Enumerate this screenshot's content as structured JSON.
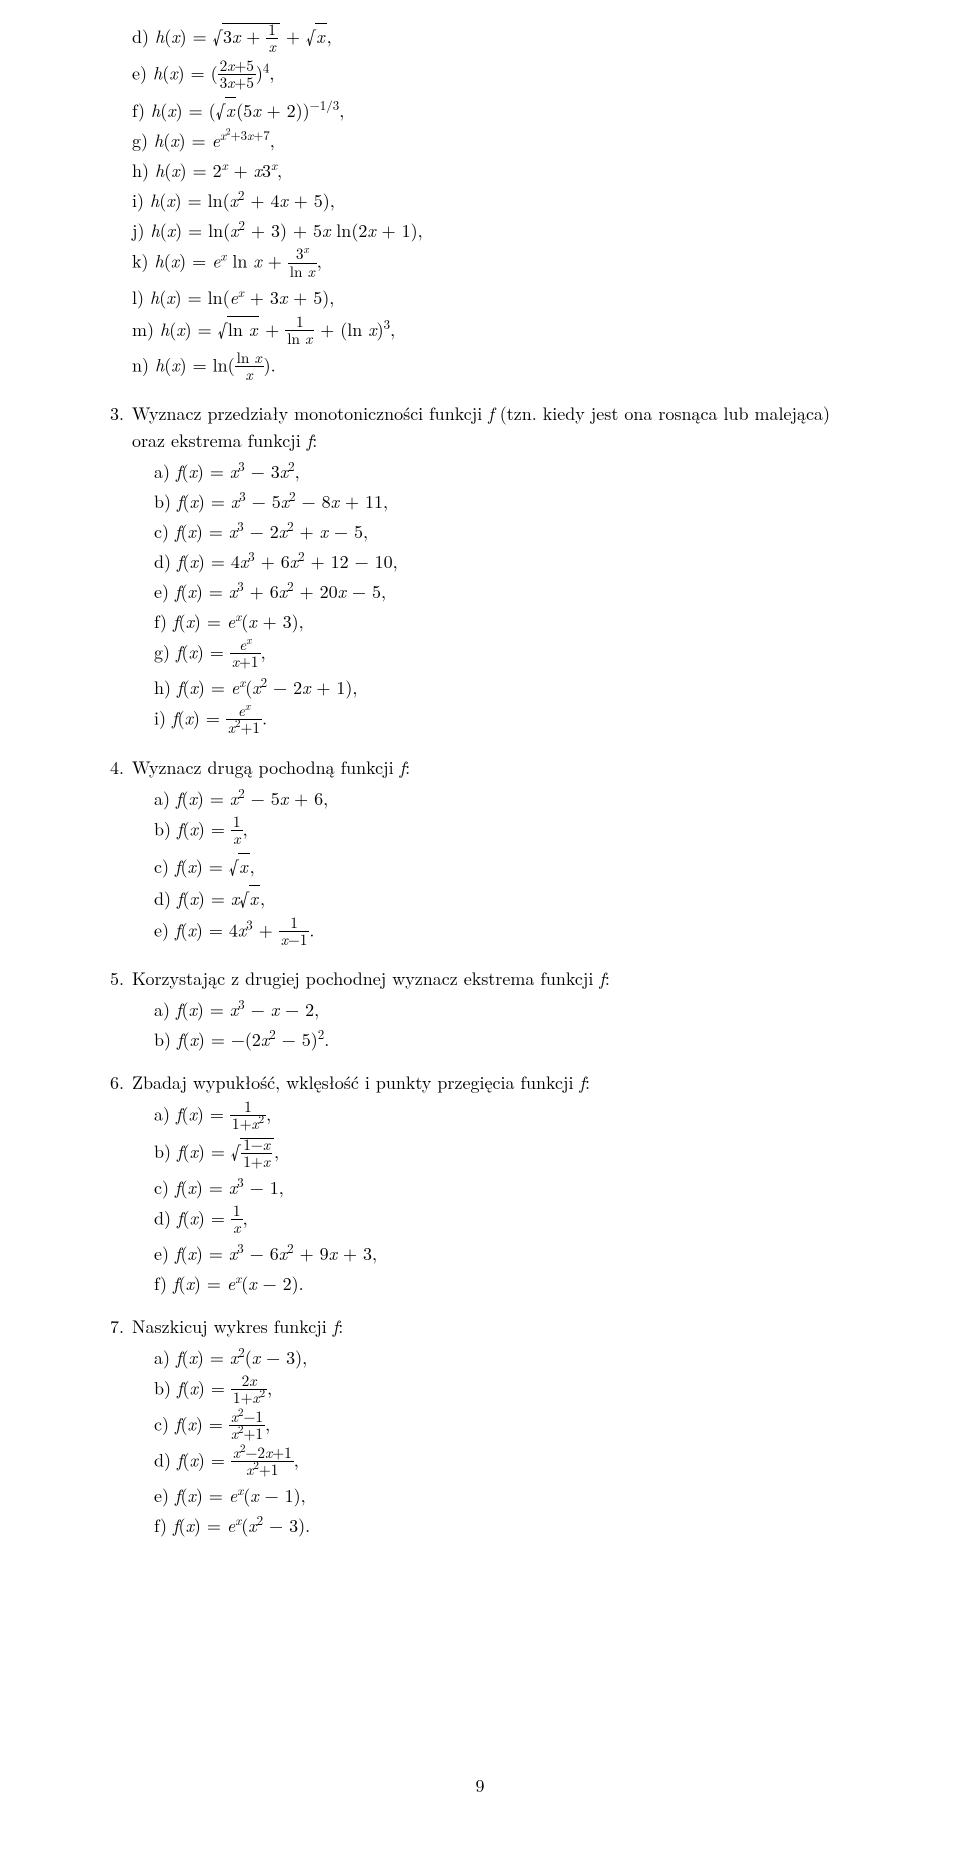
{
  "page_number": "9",
  "colors": {
    "text": "#000000",
    "background": "#ffffff"
  },
  "font": {
    "family": "Latin Modern Roman / Computer Modern",
    "base_size_pt": 12
  },
  "cont2": {
    "items": [
      {
        "label": "d)",
        "expr": "h(x) = √(3x + 1/x) + √x,"
      },
      {
        "label": "e)",
        "expr": "h(x) = ((2x+5)/(3x+5))⁴,"
      },
      {
        "label": "f)",
        "expr": "h(x) = (√x(5x + 2))^(−1/3),"
      },
      {
        "label": "g)",
        "expr": "h(x) = e^(x²+3x+7),"
      },
      {
        "label": "h)",
        "expr": "h(x) = 2^x + x3^x,"
      },
      {
        "label": "i)",
        "expr": "h(x) = ln(x² + 4x + 5),"
      },
      {
        "label": "j)",
        "expr": "h(x) = ln(x² + 3) + 5x ln(2x + 1),"
      },
      {
        "label": "k)",
        "expr": "h(x) = e^x ln x + 3^x/ln x,"
      },
      {
        "label": "l)",
        "expr": "h(x) = ln(e^x + 3x + 5),"
      },
      {
        "label": "m)",
        "expr": "h(x) = √(ln x) + 1/ln x + (ln x)³,"
      },
      {
        "label": "n)",
        "expr": "h(x) = ln( ln x / x )."
      }
    ]
  },
  "ex3": {
    "marker": "3.",
    "text_a": "Wyznacz przedziały monotoniczności funkcji ",
    "text_b": " (tzn. kiedy jest ona rosnąca lub malejąca) oraz ekstrema funkcji ",
    "text_c": ":",
    "items": [
      {
        "label": "a)",
        "expr": "f(x) = x³ − 3x²,"
      },
      {
        "label": "b)",
        "expr": "f(x) = x³ − 5x² − 8x + 11,"
      },
      {
        "label": "c)",
        "expr": "f(x) = x³ − 2x² + x − 5,"
      },
      {
        "label": "d)",
        "expr": "f(x) = 4x³ + 6x² + 12 − 10,"
      },
      {
        "label": "e)",
        "expr": "f(x) = x³ + 6x² + 20x − 5,"
      },
      {
        "label": "f)",
        "expr": "f(x) = e^x(x + 3),"
      },
      {
        "label": "g)",
        "expr": "f(x) = e^x/(x+1),"
      },
      {
        "label": "h)",
        "expr": "f(x) = e^x(x² − 2x + 1),"
      },
      {
        "label": "i)",
        "expr": "f(x) = e^x/(x²+1)."
      }
    ]
  },
  "ex4": {
    "marker": "4.",
    "text": "Wyznacz drugą pochodną funkcji ",
    "items": [
      {
        "label": "a)",
        "expr": "f(x) = x² − 5x + 6,"
      },
      {
        "label": "b)",
        "expr": "f(x) = 1/x,"
      },
      {
        "label": "c)",
        "expr": "f(x) = √x,"
      },
      {
        "label": "d)",
        "expr": "f(x) = x√x,"
      },
      {
        "label": "e)",
        "expr": "f(x) = 4x³ + 1/(x−1)."
      }
    ]
  },
  "ex5": {
    "marker": "5.",
    "text": "Korzystając z drugiej pochodnej wyznacz ekstrema funkcji ",
    "items": [
      {
        "label": "a)",
        "expr": "f(x) = x³ − x − 2,"
      },
      {
        "label": "b)",
        "expr": "f(x) = −(2x² − 5)²."
      }
    ]
  },
  "ex6": {
    "marker": "6.",
    "text": "Zbadaj wypukłość, wklęsłość i punkty przegięcia funkcji ",
    "items": [
      {
        "label": "a)",
        "expr": "f(x) = 1/(1+x²),"
      },
      {
        "label": "b)",
        "expr": "f(x) = √((1−x)/(1+x)),"
      },
      {
        "label": "c)",
        "expr": "f(x) = x³ − 1,"
      },
      {
        "label": "d)",
        "expr": "f(x) = 1/x,"
      },
      {
        "label": "e)",
        "expr": "f(x) = x³ − 6x² + 9x + 3,"
      },
      {
        "label": "f)",
        "expr": "f(x) = e^x(x − 2)."
      }
    ]
  },
  "ex7": {
    "marker": "7.",
    "text": "Naszkicuj wykres funkcji ",
    "items": [
      {
        "label": "a)",
        "expr": "f(x) = x²(x − 3),"
      },
      {
        "label": "b)",
        "expr": "f(x) = 2x/(1+x²),"
      },
      {
        "label": "c)",
        "expr": "f(x) = (x²−1)/(x²+1),"
      },
      {
        "label": "d)",
        "expr": "f(x) = (x²−2x+1)/(x²+1),"
      },
      {
        "label": "e)",
        "expr": "f(x) = e^x(x − 1),"
      },
      {
        "label": "f)",
        "expr": "f(x) = e^x(x² − 3)."
      }
    ]
  }
}
